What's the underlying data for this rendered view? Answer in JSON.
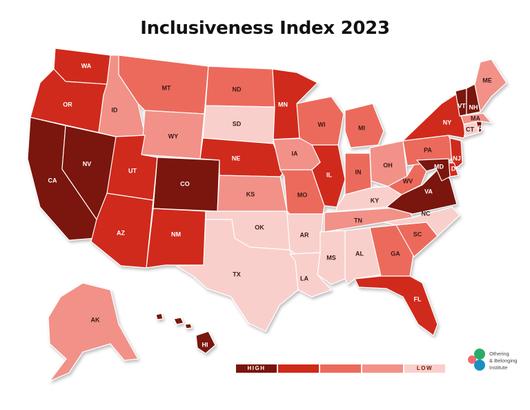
{
  "title": "Inclusiveness Index 2023",
  "colors": {
    "tier1": "#7a140d",
    "tier2": "#d02a1a",
    "tier3": "#ec6a5c",
    "tier4": "#f29188",
    "tier5": "#f9cfcb",
    "logo_green": "#2aab6a",
    "logo_blue": "#1b8fc2",
    "logo_pink": "#f16a6a"
  },
  "legend": {
    "high_label": "HIGH",
    "low_label": "LOW",
    "tiers": [
      "tier1",
      "tier2",
      "tier3",
      "tier4",
      "tier5"
    ]
  },
  "logo": {
    "line1": "Othering",
    "line2": "& Belonging",
    "line3": "Institute"
  },
  "states": [
    {
      "code": "WA",
      "tier": "tier2"
    },
    {
      "code": "OR",
      "tier": "tier2"
    },
    {
      "code": "CA",
      "tier": "tier1"
    },
    {
      "code": "NV",
      "tier": "tier1"
    },
    {
      "code": "ID",
      "tier": "tier4"
    },
    {
      "code": "MT",
      "tier": "tier3"
    },
    {
      "code": "WY",
      "tier": "tier4"
    },
    {
      "code": "UT",
      "tier": "tier2"
    },
    {
      "code": "CO",
      "tier": "tier1"
    },
    {
      "code": "AZ",
      "tier": "tier2"
    },
    {
      "code": "NM",
      "tier": "tier2"
    },
    {
      "code": "ND",
      "tier": "tier3"
    },
    {
      "code": "SD",
      "tier": "tier5"
    },
    {
      "code": "NE",
      "tier": "tier2"
    },
    {
      "code": "KS",
      "tier": "tier4"
    },
    {
      "code": "OK",
      "tier": "tier5"
    },
    {
      "code": "TX",
      "tier": "tier5"
    },
    {
      "code": "MN",
      "tier": "tier2"
    },
    {
      "code": "IA",
      "tier": "tier4"
    },
    {
      "code": "MO",
      "tier": "tier3"
    },
    {
      "code": "AR",
      "tier": "tier5"
    },
    {
      "code": "LA",
      "tier": "tier5"
    },
    {
      "code": "WI",
      "tier": "tier3"
    },
    {
      "code": "IL",
      "tier": "tier2"
    },
    {
      "code": "MI",
      "tier": "tier3"
    },
    {
      "code": "IN",
      "tier": "tier3"
    },
    {
      "code": "OH",
      "tier": "tier4"
    },
    {
      "code": "KY",
      "tier": "tier5"
    },
    {
      "code": "TN",
      "tier": "tier4"
    },
    {
      "code": "MS",
      "tier": "tier5"
    },
    {
      "code": "AL",
      "tier": "tier5"
    },
    {
      "code": "GA",
      "tier": "tier3"
    },
    {
      "code": "FL",
      "tier": "tier2"
    },
    {
      "code": "SC",
      "tier": "tier3"
    },
    {
      "code": "NC",
      "tier": "tier5"
    },
    {
      "code": "VA",
      "tier": "tier1"
    },
    {
      "code": "WV",
      "tier": "tier3"
    },
    {
      "code": "PA",
      "tier": "tier3"
    },
    {
      "code": "NY",
      "tier": "tier2"
    },
    {
      "code": "NJ",
      "tier": "tier2"
    },
    {
      "code": "DE",
      "tier": "tier2"
    },
    {
      "code": "MD",
      "tier": "tier1"
    },
    {
      "code": "CT",
      "tier": "tier5"
    },
    {
      "code": "RI",
      "tier": "tier1"
    },
    {
      "code": "MA",
      "tier": "tier4"
    },
    {
      "code": "VT",
      "tier": "tier1"
    },
    {
      "code": "NH",
      "tier": "tier1"
    },
    {
      "code": "ME",
      "tier": "tier4"
    },
    {
      "code": "AK",
      "tier": "tier4"
    },
    {
      "code": "HI",
      "tier": "tier1"
    }
  ]
}
